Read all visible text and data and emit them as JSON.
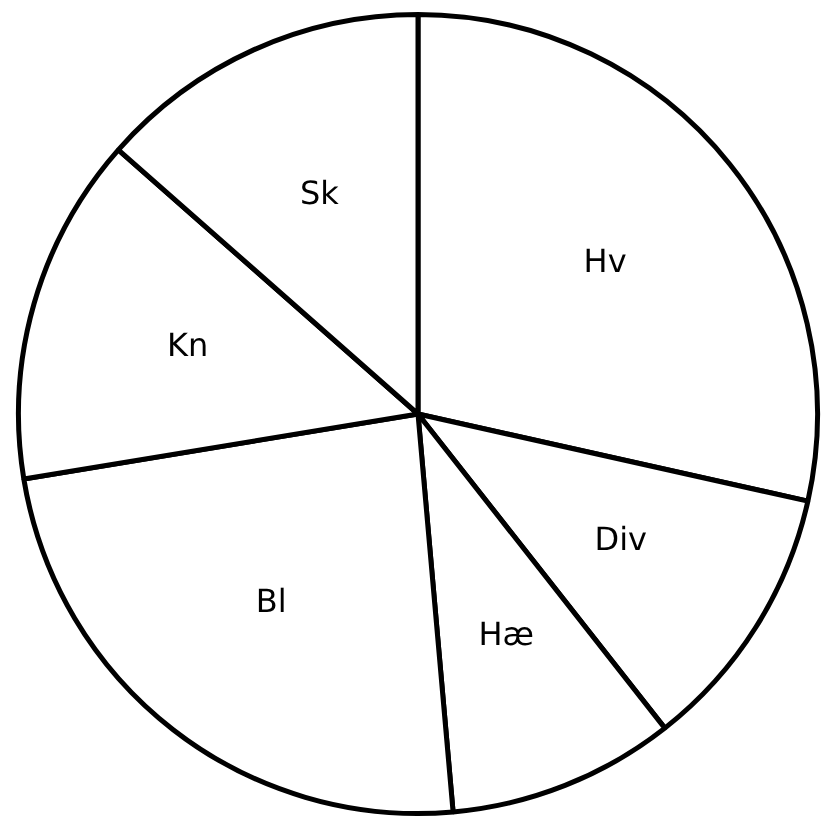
{
  "chart_data": {
    "type": "pie",
    "categories": [
      "Hv",
      "Div",
      "Hæ",
      "Bl",
      "Kn",
      "Sk"
    ],
    "values": [
      28.5,
      10.9,
      9.2,
      23.8,
      14.1,
      13.5
    ],
    "colors": [
      "#ffffff",
      "#ffffff",
      "#ffffff",
      "#ffffff",
      "#ffffff",
      "#ffffff"
    ],
    "legend": false
  }
}
